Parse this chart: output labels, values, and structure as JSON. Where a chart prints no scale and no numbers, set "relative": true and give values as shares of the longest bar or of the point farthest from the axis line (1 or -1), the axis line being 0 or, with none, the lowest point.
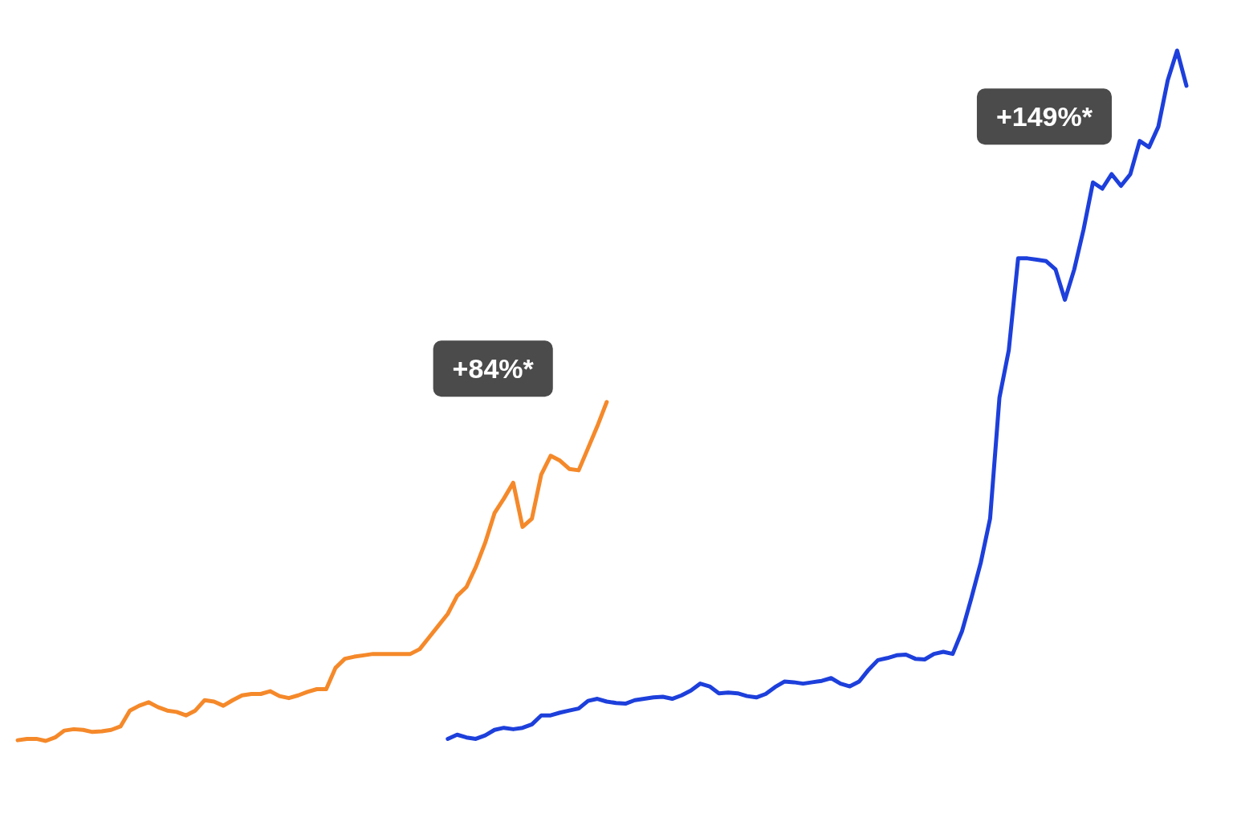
{
  "chart_data": {
    "type": "line",
    "relative": true,
    "legend": false,
    "marker": "none",
    "categories": [
      null,
      null,
      null,
      null,
      null,
      null,
      null,
      null,
      null,
      null,
      null,
      null,
      null,
      null,
      null,
      null,
      null,
      null,
      null,
      null,
      null,
      null,
      null,
      null,
      null,
      null,
      null,
      null,
      null,
      null,
      null,
      null,
      null,
      null,
      null,
      null,
      null,
      null,
      null,
      null,
      null,
      null,
      null,
      null,
      null,
      null,
      null,
      null,
      null,
      null,
      null,
      null,
      null,
      null,
      null,
      null,
      null,
      null,
      null,
      null,
      null,
      null,
      null,
      null,
      null,
      null,
      null,
      null,
      null,
      null,
      null,
      null,
      null,
      null,
      null,
      null,
      null,
      null,
      null,
      null,
      null,
      null,
      null,
      null,
      null,
      null,
      null,
      null,
      null,
      null,
      null,
      null,
      null,
      null,
      null,
      null,
      null,
      null,
      null,
      null,
      null,
      null,
      null,
      null,
      null,
      null,
      null,
      null,
      null,
      null,
      null,
      null,
      null,
      null,
      null,
      null,
      null,
      null,
      null,
      null,
      null,
      null,
      null,
      null,
      null,
      null
    ],
    "series": [
      {
        "color": "#f5892a",
        "values": [
          0.001,
          0.003,
          0.003,
          0,
          0.005,
          0.015,
          0.017,
          0.016,
          0.013,
          0.014,
          0.016,
          0.021,
          0.044,
          0.051,
          0.056,
          0.049,
          0.044,
          0.042,
          0.037,
          0.044,
          0.059,
          0.057,
          0.051,
          0.059,
          0.066,
          0.068,
          0.068,
          0.072,
          0.065,
          0.062,
          0.066,
          0.071,
          0.075,
          0.075,
          0.106,
          0.119,
          0.122,
          0.124,
          0.126,
          0.126,
          0.126,
          0.126,
          0.126,
          0.133,
          0.15,
          0.167,
          0.184,
          0.21,
          0.223,
          0.252,
          0.287,
          0.33,
          0.351,
          0.374,
          0.31,
          0.322,
          0.386,
          0.413,
          0.406,
          0.394,
          0.392,
          0.424,
          0.456,
          0.491,
          null,
          null,
          null,
          null,
          null,
          null,
          null,
          null,
          null,
          null,
          null,
          null,
          null,
          null,
          null,
          null,
          null,
          null,
          null,
          null,
          null,
          null,
          null,
          null,
          null,
          null,
          null,
          null,
          null,
          null,
          null,
          null,
          null,
          null,
          null,
          null,
          null,
          null,
          null,
          null,
          null,
          null,
          null,
          null,
          null,
          null,
          null,
          null,
          null,
          null,
          null,
          null,
          null,
          null,
          null,
          null,
          null,
          null,
          null,
          null,
          null,
          null
        ]
      },
      {
        "color": "#1d3fdb",
        "values": [
          null,
          null,
          null,
          null,
          null,
          null,
          null,
          null,
          null,
          null,
          null,
          null,
          null,
          null,
          null,
          null,
          null,
          null,
          null,
          null,
          null,
          null,
          null,
          null,
          null,
          null,
          null,
          null,
          null,
          null,
          null,
          null,
          null,
          null,
          null,
          null,
          null,
          null,
          null,
          null,
          null,
          null,
          null,
          null,
          null,
          null,
          0.003,
          0.009,
          0.005,
          0.003,
          0.008,
          0.016,
          0.019,
          0.017,
          0.019,
          0.024,
          0.037,
          0.037,
          0.041,
          0.044,
          0.047,
          0.058,
          0.061,
          0.057,
          0.055,
          0.054,
          0.059,
          0.061,
          0.063,
          0.064,
          0.061,
          0.066,
          0.073,
          0.083,
          0.079,
          0.069,
          0.07,
          0.069,
          0.065,
          0.063,
          0.068,
          0.078,
          0.086,
          0.085,
          0.083,
          0.085,
          0.087,
          0.091,
          0.083,
          0.079,
          0.086,
          0.103,
          0.117,
          0.12,
          0.124,
          0.125,
          0.119,
          0.118,
          0.126,
          0.129,
          0.126,
          0.159,
          0.207,
          0.258,
          0.322,
          0.497,
          0.566,
          0.699,
          0.699,
          0.697,
          0.695,
          0.683,
          0.639,
          0.683,
          0.741,
          0.809,
          0.8,
          0.821,
          0.804,
          0.821,
          0.869,
          0.86,
          0.89,
          0.957,
          1,
          0.949
        ]
      }
    ],
    "annotations": [
      "+84%*",
      "+149%*"
    ]
  }
}
